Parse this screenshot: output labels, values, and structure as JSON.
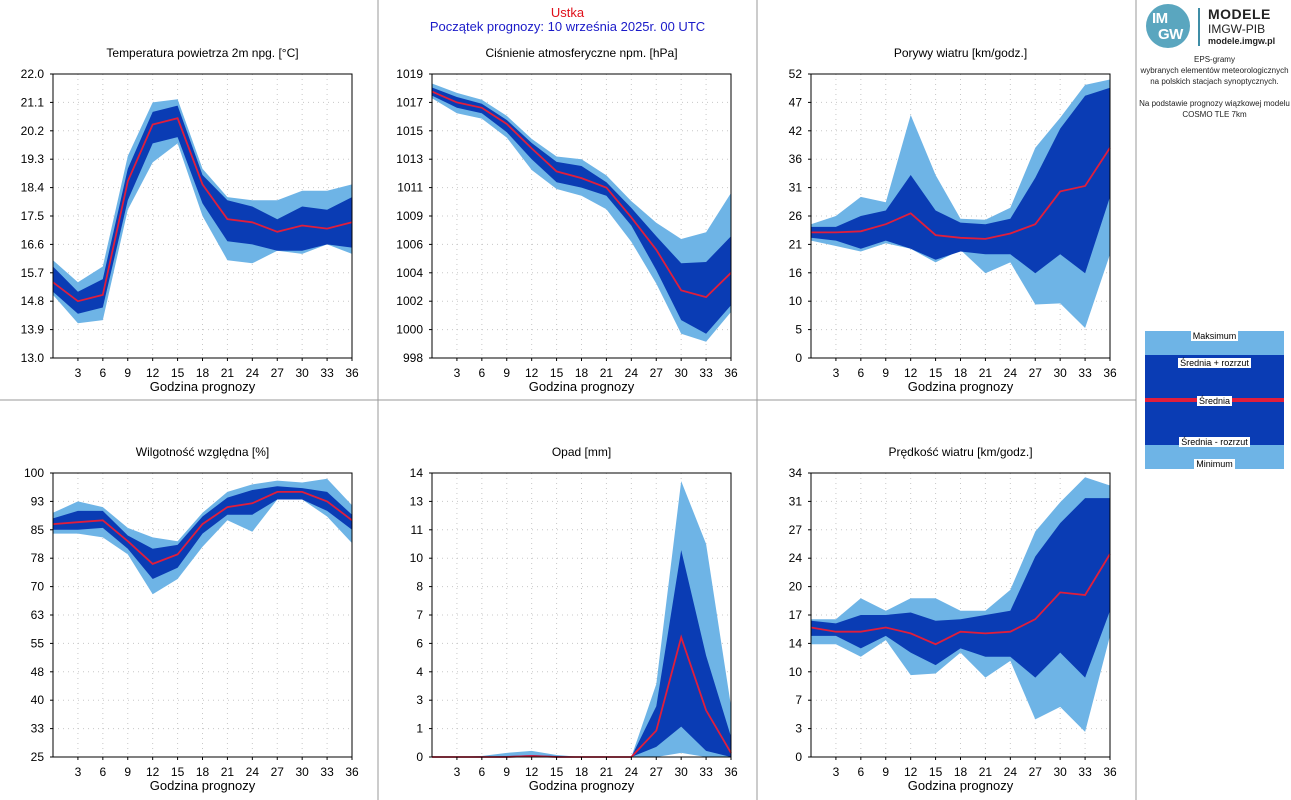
{
  "header": {
    "station": "Ustka",
    "forecast_start": "Początek prognozy: 10 września 2025r. 00 UTC"
  },
  "logo": {
    "badge_top": "IM",
    "badge_bottom": "GW",
    "title": "MODELE",
    "subtitle": "IMGW-PIB",
    "url": "modele.imgw.pl"
  },
  "description": {
    "line1": "EPS-gramy",
    "line2": "wybranych elementów meteorologicznych",
    "line3": "na polskich stacjach  synoptycznych.",
    "line4": "Na podstawie prognozy wiązkowej modelu",
    "line5": "COSMO TLE 7km"
  },
  "legend": {
    "max": "Maksimum",
    "mean_plus": "Średnia + rozrzut",
    "mean": "Średnia",
    "mean_minus": "Średnia - rozrzut",
    "min": "Minimum"
  },
  "colors": {
    "light": "#6eb4e6",
    "dark": "#0a3cb4",
    "mean": "#e01e3c",
    "station": "#e0101a",
    "start": "#1a1ac8"
  },
  "chart_data": [
    {
      "type": "area",
      "title": "Temperatura powietrza 2m npg. [°C]",
      "xlabel": "Godzina prognozy",
      "ylim": [
        13.0,
        22.0
      ],
      "yticks": [
        "13.0",
        "13.9",
        "14.8",
        "15.7",
        "16.6",
        "17.5",
        "18.4",
        "19.3",
        "20.2",
        "21.1",
        "22.0"
      ],
      "x": [
        0,
        3,
        6,
        9,
        12,
        15,
        18,
        21,
        24,
        27,
        30,
        33,
        36
      ],
      "xticks": [
        "3",
        "6",
        "9",
        "12",
        "15",
        "18",
        "21",
        "24",
        "27",
        "30",
        "33",
        "36"
      ],
      "max": [
        16.1,
        15.4,
        15.9,
        19.4,
        21.1,
        21.2,
        19.0,
        18.1,
        18.0,
        18.0,
        18.3,
        18.3,
        18.5
      ],
      "mean_plus": [
        15.9,
        15.1,
        15.5,
        19.0,
        20.8,
        21.0,
        18.8,
        18.0,
        17.8,
        17.4,
        17.8,
        17.7,
        18.1
      ],
      "mean": [
        15.4,
        14.8,
        15.0,
        18.6,
        20.4,
        20.6,
        18.5,
        17.4,
        17.3,
        17.0,
        17.2,
        17.1,
        17.3
      ],
      "mean_minus": [
        15.1,
        14.4,
        14.6,
        18.0,
        19.8,
        20.0,
        17.9,
        16.7,
        16.6,
        16.4,
        16.4,
        16.6,
        16.5
      ],
      "min": [
        15.0,
        14.1,
        14.2,
        17.7,
        19.2,
        19.8,
        17.5,
        16.1,
        16.0,
        16.4,
        16.3,
        16.6,
        16.3
      ]
    },
    {
      "type": "area",
      "title": "Ciśnienie atmosferyczne npm. [hPa]",
      "xlabel": "Godzina prognozy",
      "ylim": [
        998,
        1019
      ],
      "yticks": [
        "998",
        "1000",
        "1002",
        "1004",
        "1006",
        "1009",
        "1011",
        "1013",
        "1015",
        "1017",
        "1019"
      ],
      "x": [
        0,
        3,
        6,
        9,
        12,
        15,
        18,
        21,
        24,
        27,
        30,
        33,
        36
      ],
      "xticks": [
        "3",
        "6",
        "9",
        "12",
        "15",
        "18",
        "21",
        "24",
        "27",
        "30",
        "33",
        "36"
      ],
      "max": [
        1018.3,
        1017.6,
        1017.1,
        1015.9,
        1014.2,
        1012.9,
        1012.7,
        1011.5,
        1009.6,
        1008.0,
        1006.8,
        1007.3,
        1010.2
      ],
      "mean_plus": [
        1018.0,
        1017.3,
        1016.8,
        1015.6,
        1013.9,
        1012.5,
        1012.2,
        1011.0,
        1009.1,
        1007.0,
        1005.0,
        1005.1,
        1007.0
      ],
      "mean": [
        1017.7,
        1016.9,
        1016.5,
        1015.3,
        1013.5,
        1011.8,
        1011.3,
        1010.6,
        1008.4,
        1006.0,
        1003.0,
        1002.5,
        1004.3
      ],
      "mean_minus": [
        1017.4,
        1016.5,
        1016.1,
        1014.7,
        1012.7,
        1011.0,
        1010.6,
        1010.0,
        1007.8,
        1004.5,
        1000.8,
        999.8,
        1001.9
      ],
      "min": [
        1017.2,
        1016.1,
        1015.7,
        1014.3,
        1011.9,
        1010.5,
        1010.0,
        1009.0,
        1006.6,
        1003.5,
        999.8,
        999.2,
        1001.4
      ]
    },
    {
      "type": "area",
      "title": "Porywy wiatru [km/godz.]",
      "xlabel": "Godzina prognozy",
      "ylim": [
        0,
        52
      ],
      "yticks": [
        "0",
        "5",
        "10",
        "16",
        "21",
        "26",
        "31",
        "36",
        "42",
        "47",
        "52"
      ],
      "x": [
        0,
        3,
        6,
        9,
        12,
        15,
        18,
        21,
        24,
        27,
        30,
        33,
        36
      ],
      "xticks": [
        "3",
        "6",
        "9",
        "12",
        "15",
        "18",
        "21",
        "24",
        "27",
        "30",
        "33",
        "36"
      ],
      "max": [
        24.5,
        26.0,
        29.5,
        28.5,
        44.5,
        33.5,
        25.5,
        25.3,
        27.5,
        38.5,
        44.0,
        50.0,
        51.0
      ],
      "mean_plus": [
        24.0,
        24.0,
        26.0,
        27.0,
        33.5,
        27.0,
        24.8,
        24.5,
        25.5,
        33.0,
        42.0,
        48.0,
        49.5
      ],
      "mean": [
        23.0,
        23.0,
        23.2,
        24.5,
        26.5,
        22.5,
        22.0,
        21.8,
        22.8,
        24.5,
        30.5,
        31.5,
        38.5
      ],
      "mean_minus": [
        22.0,
        21.5,
        20.0,
        21.5,
        20.0,
        18.0,
        19.5,
        19.0,
        19.0,
        15.5,
        19.0,
        15.5,
        29.5
      ],
      "min": [
        21.5,
        20.5,
        19.5,
        21.0,
        20.0,
        17.5,
        19.8,
        15.5,
        17.5,
        9.8,
        10.0,
        5.5,
        19.0
      ]
    },
    {
      "type": "area",
      "title": "Wilgotność względna [%]",
      "xlabel": "Godzina prognozy",
      "ylim": [
        25,
        100
      ],
      "yticks": [
        "25",
        "33",
        "40",
        "48",
        "55",
        "63",
        "70",
        "78",
        "85",
        "93",
        "100"
      ],
      "x": [
        0,
        3,
        6,
        9,
        12,
        15,
        18,
        21,
        24,
        27,
        30,
        33,
        36
      ],
      "xticks": [
        "3",
        "6",
        "9",
        "12",
        "15",
        "18",
        "21",
        "24",
        "27",
        "30",
        "33",
        "36"
      ],
      "max": [
        89.5,
        92.5,
        91.0,
        85.5,
        83.0,
        82.0,
        89.5,
        95.0,
        97.0,
        98.0,
        97.5,
        98.5,
        91.5
      ],
      "mean_plus": [
        88.0,
        90.0,
        90.0,
        83.5,
        80.0,
        81.0,
        88.5,
        93.5,
        95.5,
        96.5,
        96.0,
        95.0,
        89.0
      ],
      "mean": [
        86.5,
        87.0,
        87.5,
        82.0,
        76.0,
        78.5,
        86.5,
        91.0,
        92.0,
        95.0,
        95.0,
        92.5,
        87.5
      ],
      "mean_minus": [
        85.0,
        85.0,
        85.5,
        80.0,
        72.0,
        75.0,
        84.0,
        89.0,
        89.0,
        93.0,
        93.0,
        90.0,
        85.0
      ],
      "min": [
        84.0,
        84.0,
        83.0,
        78.5,
        68.0,
        72.0,
        80.5,
        87.5,
        84.5,
        93.0,
        93.0,
        88.5,
        81.5
      ]
    },
    {
      "type": "area",
      "title": "Opad [mm]",
      "xlabel": "Godzina prognozy",
      "ylim": [
        0,
        14
      ],
      "yticks": [
        "0",
        "1",
        "3",
        "4",
        "6",
        "7",
        "8",
        "10",
        "11",
        "13",
        "14"
      ],
      "x": [
        0,
        3,
        6,
        9,
        12,
        15,
        18,
        21,
        24,
        27,
        30,
        33,
        36
      ],
      "xticks": [
        "3",
        "6",
        "9",
        "12",
        "15",
        "18",
        "21",
        "24",
        "27",
        "30",
        "33",
        "36"
      ],
      "max": [
        0.0,
        0.0,
        0.05,
        0.2,
        0.3,
        0.1,
        0.0,
        0.0,
        0.0,
        3.6,
        13.6,
        10.5,
        2.5
      ],
      "mean_plus": [
        0.0,
        0.0,
        0.0,
        0.05,
        0.1,
        0.05,
        0.0,
        0.0,
        0.0,
        2.5,
        10.2,
        5.0,
        1.0
      ],
      "mean": [
        0.0,
        0.0,
        0.0,
        0.0,
        0.05,
        0.0,
        0.0,
        0.0,
        0.0,
        1.3,
        5.9,
        2.3,
        0.2
      ],
      "mean_minus": [
        0.0,
        0.0,
        0.0,
        0.0,
        0.0,
        0.0,
        0.0,
        0.0,
        0.0,
        0.5,
        1.5,
        0.3,
        0.0
      ],
      "min": [
        0.0,
        0.0,
        0.0,
        0.0,
        0.0,
        0.0,
        0.0,
        0.0,
        0.0,
        0.0,
        0.2,
        0.0,
        0.0
      ]
    },
    {
      "type": "area",
      "title": "Prędkość wiatru [km/godz.]",
      "xlabel": "Godzina prognozy",
      "ylim": [
        0,
        34
      ],
      "yticks": [
        "0",
        "3",
        "7",
        "10",
        "14",
        "17",
        "20",
        "24",
        "27",
        "31",
        "34"
      ],
      "x": [
        0,
        3,
        6,
        9,
        12,
        15,
        18,
        21,
        24,
        27,
        30,
        33,
        36
      ],
      "xticks": [
        "3",
        "6",
        "9",
        "12",
        "15",
        "18",
        "21",
        "24",
        "27",
        "30",
        "33",
        "36"
      ],
      "max": [
        16.5,
        16.5,
        19.0,
        17.5,
        19.0,
        19.0,
        17.5,
        17.5,
        20.0,
        27.0,
        30.5,
        33.5,
        32.5
      ],
      "mean_plus": [
        16.3,
        16.0,
        17.0,
        17.0,
        17.3,
        16.3,
        16.5,
        17.0,
        17.5,
        24.0,
        28.0,
        31.0,
        31.0
      ],
      "mean": [
        15.5,
        15.0,
        15.0,
        15.5,
        14.8,
        13.5,
        15.0,
        14.8,
        15.0,
        16.5,
        19.7,
        19.4,
        24.3
      ],
      "mean_minus": [
        14.5,
        14.5,
        13.0,
        14.5,
        12.5,
        11.0,
        13.0,
        12.0,
        12.0,
        9.5,
        12.5,
        9.5,
        17.5
      ],
      "min": [
        13.5,
        13.5,
        12.0,
        14.0,
        9.8,
        10.0,
        12.5,
        9.5,
        11.5,
        4.5,
        6.0,
        3.0,
        14.5
      ]
    }
  ]
}
